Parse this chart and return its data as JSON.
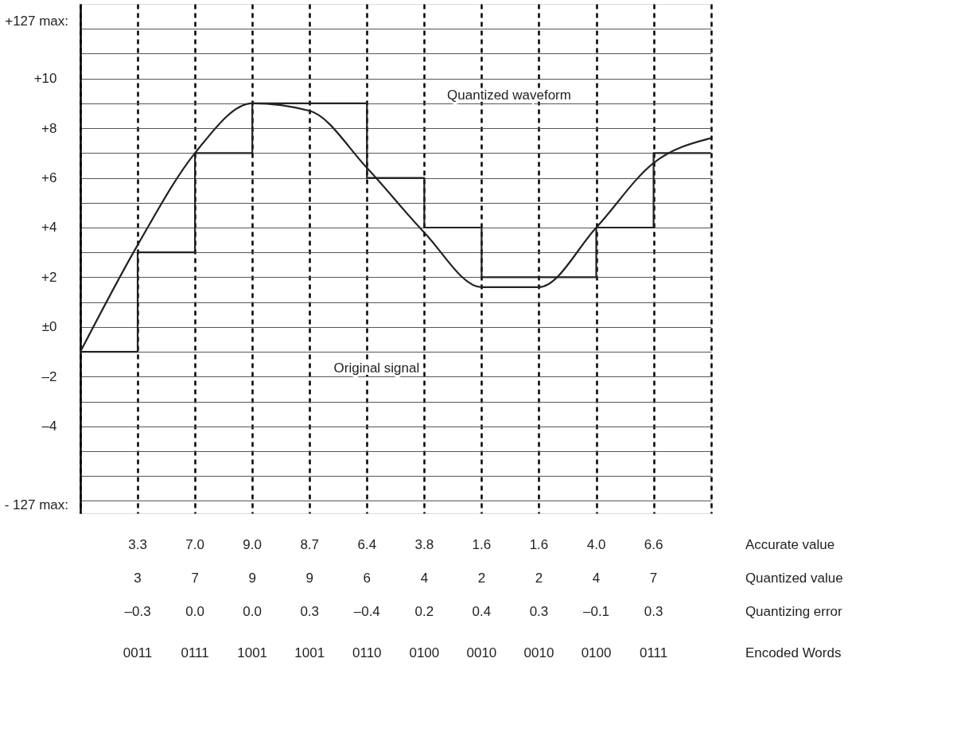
{
  "chart_data": {
    "type": "line",
    "categories": [
      null,
      null,
      null,
      null,
      null,
      null,
      null,
      null,
      null,
      null,
      null,
      null
    ],
    "ylim": [
      -7.5,
      13
    ],
    "yticks": [
      {
        "value": 12,
        "label": null
      },
      {
        "value": 11,
        "label": null
      },
      {
        "value": 10,
        "label": "+10"
      },
      {
        "value": 9,
        "label": null
      },
      {
        "value": 8,
        "label": "+8"
      },
      {
        "value": 7,
        "label": null
      },
      {
        "value": 6,
        "label": "+6"
      },
      {
        "value": 5,
        "label": null
      },
      {
        "value": 4,
        "label": "+4"
      },
      {
        "value": 3,
        "label": null
      },
      {
        "value": 2,
        "label": "+2"
      },
      {
        "value": 1,
        "label": null
      },
      {
        "value": 0,
        "label": "±0"
      },
      {
        "value": -1,
        "label": null
      },
      {
        "value": -2,
        "label": "–2"
      },
      {
        "value": -3,
        "label": null
      },
      {
        "value": -4,
        "label": "–4"
      },
      {
        "value": -5,
        "label": null
      },
      {
        "value": -6,
        "label": null
      },
      {
        "value": -7,
        "label": null
      }
    ],
    "tick_labels": "y",
    "grid": true,
    "line_style": "solid",
    "series": [
      {
        "color": "#222222",
        "values": [
          -1,
          3.3,
          7.0,
          9.0,
          8.7,
          6.4,
          3.8,
          1.6,
          1.6,
          4.0,
          6.6,
          7.6
        ],
        "value_labels": [
          null,
          "3.3",
          "7.0",
          "9.0",
          "8.7",
          "6.4",
          "3.8",
          "1.6",
          "1.6",
          "4.0",
          "6.6",
          null
        ]
      },
      {
        "type": "step",
        "color": "#222222",
        "values": [
          -1,
          3,
          7,
          9,
          9,
          6,
          4,
          2,
          2,
          4,
          7,
          7
        ],
        "value_labels": [
          null,
          "3",
          "7",
          "9",
          "9",
          "6",
          "4",
          "2",
          "2",
          "4",
          "7",
          null
        ]
      }
    ],
    "annotations": [
      "+127 max:",
      "- 127 max:",
      "Quantized waveform",
      "Original signal",
      "Accurate value",
      "Quantized value",
      "Quantizing error",
      "Encoded Words",
      "–0.3",
      "0.0",
      "0.0",
      "0.3",
      "–0.4",
      "0.2",
      "0.4",
      "0.3",
      "–0.1",
      "0.3",
      "0011",
      "0111",
      "1001",
      "1001",
      "0110",
      "0100",
      "0010",
      "0010",
      "0100",
      "0111"
    ]
  }
}
